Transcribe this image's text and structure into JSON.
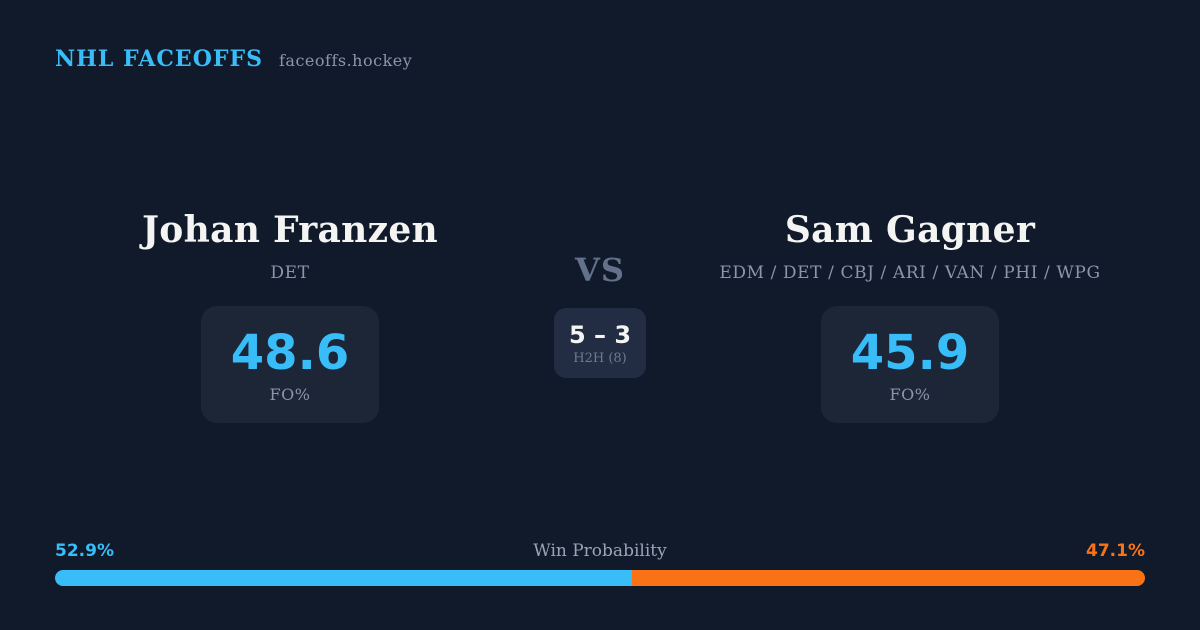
{
  "header": {
    "brand": "NHL FACEOFFS",
    "site": "faceoffs.hockey"
  },
  "matchup": {
    "player1": {
      "name": "Johan Franzen",
      "teams": "DET",
      "stat_value": "48.6",
      "stat_label": "FO%",
      "win_probability_label": "52.9%",
      "win_probability_value": 52.9
    },
    "player2": {
      "name": "Sam Gagner",
      "teams": "EDM / DET / CBJ / ARI / VAN / PHI / WPG",
      "stat_value": "45.9",
      "stat_label": "FO%",
      "win_probability_label": "47.1%",
      "win_probability_value": 47.1
    },
    "vs_label": "VS",
    "h2h": {
      "score": "5 – 3",
      "label": "H2H (8)"
    }
  },
  "win_probability": {
    "title": "Win Probability"
  },
  "chart_data": {
    "type": "bar",
    "subtype": "horizontal-stacked-probability",
    "title": "Win Probability",
    "categories": [
      "Johan Franzen",
      "Sam Gagner"
    ],
    "values": [
      52.9,
      47.1
    ],
    "value_labels": [
      "52.9%",
      "47.1%"
    ],
    "segment_colors": [
      "#38bdf8",
      "#f97316"
    ],
    "xlim": [
      0,
      100
    ],
    "legend": "none"
  },
  "colors": {
    "background": "#111a2b",
    "card": "#1c2637",
    "card_h2h": "#222c42",
    "accent_blue": "#38bdf8",
    "accent_orange": "#f97316",
    "text_primary": "#f4f5f3",
    "text_muted": "#8b96ab"
  }
}
